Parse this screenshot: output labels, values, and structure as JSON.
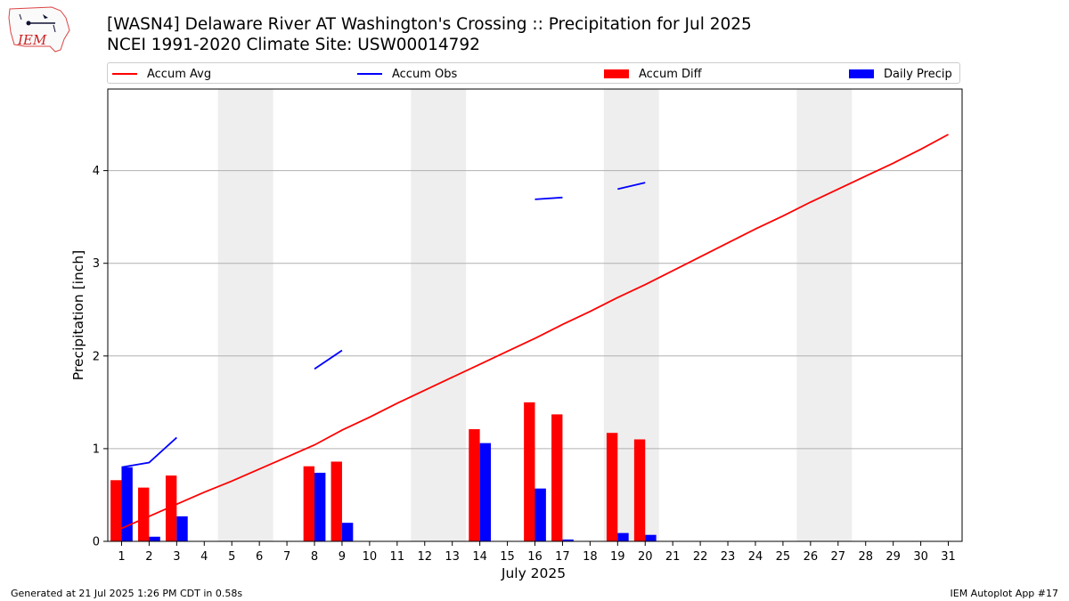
{
  "logo": {
    "text": "IEM"
  },
  "header": {
    "title": "[WASN4] Delaware River  AT Washington's Crossing :: Precipitation for Jul 2025",
    "subtitle": "NCEI 1991-2020 Climate Site: USW00014792"
  },
  "footer": {
    "generated": "Generated at 21 Jul 2025 1:26 PM CDT in 0.58s",
    "app": "IEM Autoplot App #17"
  },
  "chart_data": {
    "type": "bar",
    "xlabel": "July 2025",
    "ylabel": "Precipitation [inch]",
    "xlim": [
      0.5,
      31.5
    ],
    "ylim": [
      0,
      4.88
    ],
    "yticks": [
      0,
      1,
      2,
      3,
      4
    ],
    "xticks": [
      1,
      2,
      3,
      4,
      5,
      6,
      7,
      8,
      9,
      10,
      11,
      12,
      13,
      14,
      15,
      16,
      17,
      18,
      19,
      20,
      21,
      22,
      23,
      24,
      25,
      26,
      27,
      28,
      29,
      30,
      31
    ],
    "grid": "y",
    "legend_position": "top",
    "weekend_shading": [
      [
        5,
        6
      ],
      [
        12,
        13
      ],
      [
        19,
        20
      ],
      [
        26,
        27
      ]
    ],
    "colors": {
      "accum_avg": "#ff0000",
      "accum_obs": "#0000ff",
      "accum_diff": "#ff0000",
      "daily_precip": "#0000ff",
      "shade": "#eeeeee"
    },
    "series": [
      {
        "name": "Accum Avg",
        "kind": "line",
        "x": [
          1,
          2,
          3,
          4,
          5,
          6,
          7,
          8,
          9,
          10,
          11,
          12,
          13,
          14,
          15,
          16,
          17,
          18,
          19,
          20,
          21,
          22,
          23,
          24,
          25,
          26,
          27,
          28,
          29,
          30,
          31
        ],
        "values": [
          0.14,
          0.27,
          0.4,
          0.53,
          0.65,
          0.78,
          0.91,
          1.04,
          1.2,
          1.34,
          1.49,
          1.63,
          1.77,
          1.91,
          2.05,
          2.19,
          2.34,
          2.48,
          2.63,
          2.77,
          2.92,
          3.07,
          3.22,
          3.37,
          3.51,
          3.66,
          3.8,
          3.94,
          4.08,
          4.23,
          4.39
        ]
      },
      {
        "name": "Accum Obs",
        "kind": "line",
        "segments": [
          {
            "x": [
              1,
              2,
              3
            ],
            "values": [
              0.8,
              0.85,
              1.12
            ]
          },
          {
            "x": [
              8,
              9
            ],
            "values": [
              1.86,
              2.06
            ]
          },
          {
            "x": [
              16,
              17
            ],
            "values": [
              3.69,
              3.71
            ]
          },
          {
            "x": [
              19,
              20
            ],
            "values": [
              3.8,
              3.87
            ]
          }
        ]
      },
      {
        "name": "Accum Diff",
        "kind": "bar",
        "x": [
          1,
          2,
          3,
          8,
          9,
          14,
          16,
          17,
          19,
          20
        ],
        "values": [
          0.66,
          0.58,
          0.71,
          0.81,
          0.86,
          1.21,
          1.5,
          1.37,
          1.17,
          1.1
        ]
      },
      {
        "name": "Daily Precip",
        "kind": "bar",
        "x": [
          1,
          2,
          3,
          8,
          9,
          14,
          16,
          17,
          19,
          20
        ],
        "values": [
          0.8,
          0.05,
          0.27,
          0.74,
          0.2,
          1.06,
          0.57,
          0.02,
          0.09,
          0.07
        ]
      }
    ]
  }
}
